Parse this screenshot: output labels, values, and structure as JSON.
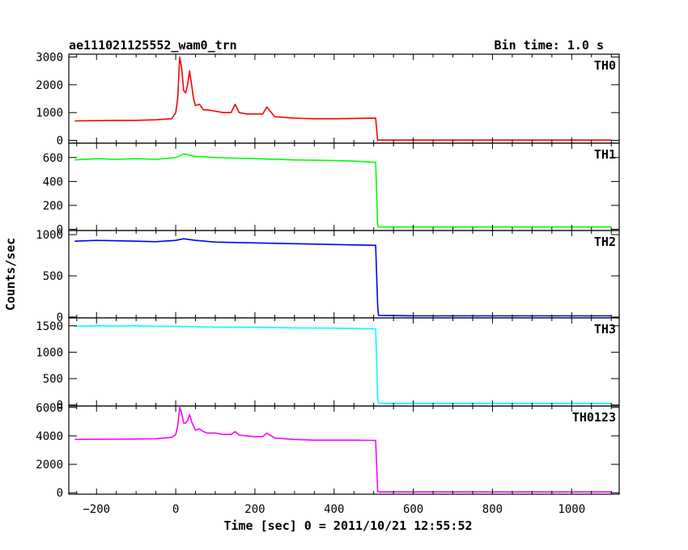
{
  "chart_data": {
    "type": "line",
    "title": "ae111021125552_wam0_trn",
    "bin_time_label": "Bin time: 1.0 s",
    "xlabel": "Time [sec] 0 = 2011/10/21 12:55:52",
    "ylabel": "Counts/sec",
    "xlim": [
      -270,
      1120
    ],
    "x_ticks": [
      -200,
      0,
      200,
      400,
      600,
      800,
      1000
    ],
    "x_tick_labels": [
      "−200",
      "0",
      "200",
      "400",
      "600",
      "800",
      "1000"
    ],
    "panels": [
      {
        "name": "TH0",
        "color": "#ff0000",
        "ylim": [
          -100,
          3100
        ],
        "y_ticks": [
          0,
          1000,
          2000,
          3000
        ],
        "y_tick_labels": [
          "0",
          "1000",
          "2000",
          "3000"
        ],
        "series": {
          "x": [
            -255,
            -200,
            -150,
            -100,
            -50,
            -10,
            0,
            5,
            10,
            15,
            20,
            25,
            30,
            35,
            40,
            45,
            50,
            60,
            70,
            80,
            100,
            120,
            140,
            150,
            160,
            180,
            200,
            220,
            230,
            250,
            300,
            350,
            400,
            450,
            505,
            510,
            512,
            600,
            700,
            800,
            900,
            1000,
            1100
          ],
          "y": [
            700,
            710,
            720,
            720,
            740,
            780,
            1000,
            1500,
            3000,
            2600,
            1800,
            1700,
            2000,
            2500,
            2000,
            1500,
            1250,
            1300,
            1100,
            1100,
            1050,
            1000,
            1000,
            1300,
            1000,
            950,
            950,
            950,
            1200,
            850,
            800,
            780,
            780,
            790,
            800,
            0,
            10,
            10,
            10,
            10,
            10,
            10,
            10
          ]
        }
      },
      {
        "name": "TH1",
        "color": "#00ff00",
        "ylim": [
          -10,
          720
        ],
        "y_ticks": [
          0,
          200,
          400,
          600
        ],
        "y_tick_labels": [
          "0",
          "200",
          "400",
          "600"
        ],
        "series": {
          "x": [
            -255,
            -200,
            -150,
            -100,
            -50,
            0,
            20,
            50,
            100,
            150,
            200,
            300,
            400,
            450,
            505,
            510,
            512,
            600,
            800,
            1000,
            1100
          ],
          "y": [
            580,
            590,
            585,
            590,
            585,
            600,
            630,
            610,
            600,
            595,
            590,
            580,
            575,
            570,
            560,
            30,
            20,
            20,
            20,
            20,
            20
          ]
        }
      },
      {
        "name": "TH2",
        "color": "#0000ff",
        "ylim": [
          -10,
          1050
        ],
        "y_ticks": [
          0,
          500,
          1000
        ],
        "y_tick_labels": [
          "0",
          "500",
          "1000"
        ],
        "series": {
          "x": [
            -255,
            -200,
            -150,
            -100,
            -50,
            0,
            20,
            50,
            100,
            200,
            300,
            400,
            450,
            505,
            510,
            512,
            600,
            800,
            1000,
            1100
          ],
          "y": [
            920,
            930,
            925,
            920,
            915,
            930,
            950,
            930,
            910,
            900,
            890,
            880,
            875,
            870,
            140,
            20,
            15,
            15,
            15,
            15
          ]
        }
      },
      {
        "name": "TH3",
        "color": "#00ffff",
        "ylim": [
          -20,
          1650
        ],
        "y_ticks": [
          0,
          500,
          1000,
          1500
        ],
        "y_tick_labels": [
          "0",
          "500",
          "1000",
          "1500"
        ],
        "series": {
          "x": [
            -255,
            -200,
            -150,
            -100,
            -50,
            0,
            50,
            100,
            200,
            300,
            400,
            450,
            505,
            510,
            512,
            600,
            800,
            1000,
            1100
          ],
          "y": [
            1490,
            1500,
            1495,
            1500,
            1490,
            1490,
            1480,
            1475,
            1470,
            1460,
            1455,
            1450,
            1440,
            150,
            30,
            30,
            30,
            30,
            30
          ]
        }
      },
      {
        "name": "TH0123",
        "color": "#ff00ff",
        "ylim": [
          -100,
          6100
        ],
        "y_ticks": [
          0,
          2000,
          4000,
          6000
        ],
        "y_tick_labels": [
          "0",
          "2000",
          "4000",
          "6000"
        ],
        "series": {
          "x": [
            -255,
            -200,
            -150,
            -100,
            -50,
            -10,
            0,
            5,
            10,
            15,
            20,
            25,
            30,
            35,
            40,
            45,
            50,
            60,
            70,
            80,
            100,
            120,
            140,
            150,
            160,
            180,
            200,
            220,
            230,
            250,
            300,
            350,
            400,
            450,
            505,
            510,
            512,
            600,
            700,
            800,
            900,
            1000,
            1100
          ],
          "y": [
            3750,
            3760,
            3770,
            3780,
            3800,
            3900,
            4100,
            4700,
            6000,
            5600,
            4900,
            4900,
            5100,
            5500,
            5000,
            4700,
            4400,
            4500,
            4300,
            4200,
            4200,
            4100,
            4100,
            4300,
            4050,
            4000,
            3950,
            3950,
            4200,
            3850,
            3750,
            3700,
            3700,
            3700,
            3680,
            100,
            60,
            60,
            60,
            60,
            60,
            60,
            60
          ]
        }
      }
    ]
  }
}
